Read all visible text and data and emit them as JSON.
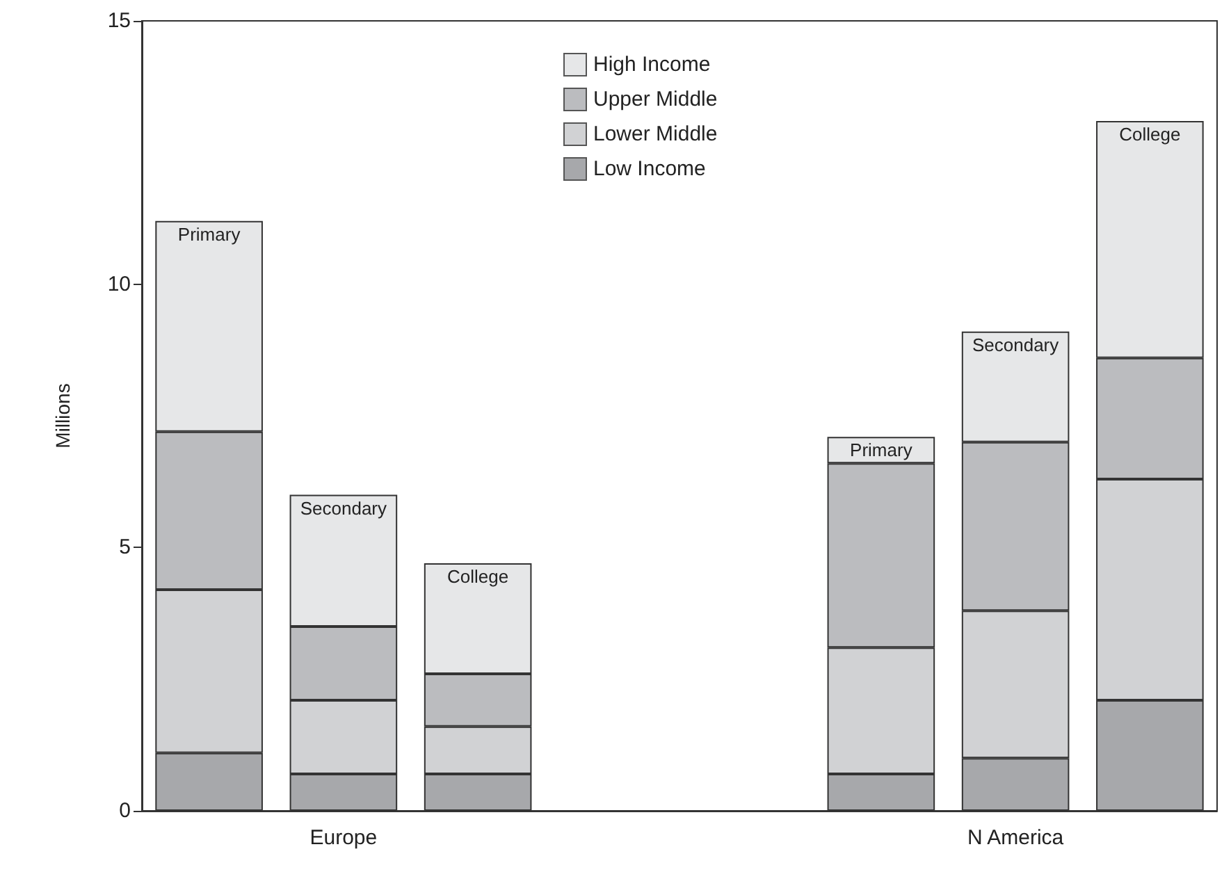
{
  "chart_data": {
    "type": "bar",
    "ylabel": "Millions",
    "stacked": true,
    "categories": [
      null,
      "Europe",
      null,
      null,
      null,
      null,
      "N America",
      null
    ],
    "series": [
      {
        "name": "Low Income",
        "color": "#a7a8ab",
        "values": [
          1.1,
          0.7,
          0.7,
          null,
          null,
          0.7,
          1.0,
          2.1
        ]
      },
      {
        "name": "Lower Middle",
        "color": "#d1d2d4",
        "values": [
          3.1,
          1.4,
          0.9,
          null,
          null,
          2.4,
          2.8,
          4.2
        ]
      },
      {
        "name": "Upper Middle",
        "color": "#bbbcbf",
        "values": [
          3.0,
          1.4,
          1.0,
          null,
          null,
          3.5,
          3.2,
          2.3
        ]
      },
      {
        "name": "High Income",
        "color": "#e6e7e8",
        "values": [
          4.0,
          2.5,
          2.1,
          null,
          null,
          0.5,
          2.1,
          4.5
        ],
        "value_labels": [
          "Primary",
          "Secondary",
          "College",
          null,
          null,
          "Primary",
          "Secondary",
          "College"
        ]
      }
    ],
    "ylim": [
      0,
      15
    ],
    "yticks": [
      0,
      5,
      10,
      15
    ],
    "grid": false,
    "legend": "top"
  }
}
